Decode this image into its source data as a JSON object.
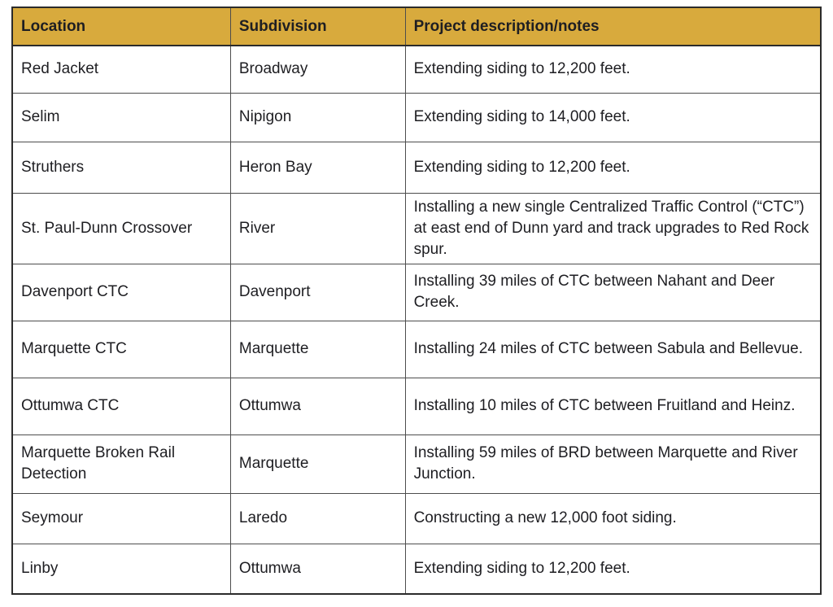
{
  "table": {
    "headers": {
      "location": "Location",
      "subdivision": "Subdivision",
      "description": "Project description/notes"
    },
    "rows": [
      {
        "location": "Red Jacket",
        "subdivision": "Broadway",
        "description": "Extending siding to 12,200 feet."
      },
      {
        "location": "Selim",
        "subdivision": "Nipigon",
        "description": "Extending siding to 14,000 feet."
      },
      {
        "location": "Struthers",
        "subdivision": "Heron Bay",
        "description": "Extending siding to 12,200 feet."
      },
      {
        "location": "St. Paul-Dunn Crossover",
        "subdivision": "River",
        "description": "Installing a new single Centralized Traffic Control (“CTC”) at east end of Dunn yard and track upgrades to Red Rock spur."
      },
      {
        "location": "Davenport CTC",
        "subdivision": "Davenport",
        "description": "Installing 39 miles of CTC between Nahant and Deer Creek."
      },
      {
        "location": "Marquette CTC",
        "subdivision": "Marquette",
        "description": "Installing 24 miles of CTC between Sabula and Bellevue."
      },
      {
        "location": "Ottumwa CTC",
        "subdivision": "Ottumwa",
        "description": "Installing 10 miles of CTC between Fruitland and Heinz."
      },
      {
        "location": "Marquette Broken Rail Detection",
        "subdivision": "Marquette",
        "description": "Installing 59 miles of BRD between Marquette and River Junction."
      },
      {
        "location": "Seymour",
        "subdivision": "Laredo",
        "description": "Constructing a new 12,000 foot siding."
      },
      {
        "location": "Linby",
        "subdivision": "Ottumwa",
        "description": "Extending siding to 12,200 feet."
      }
    ],
    "colors": {
      "header_bg": "#d8aa3d",
      "text": "#1e1e22",
      "grid_line": "#4d4d4d",
      "outer_border": "#2b2b2b"
    }
  }
}
